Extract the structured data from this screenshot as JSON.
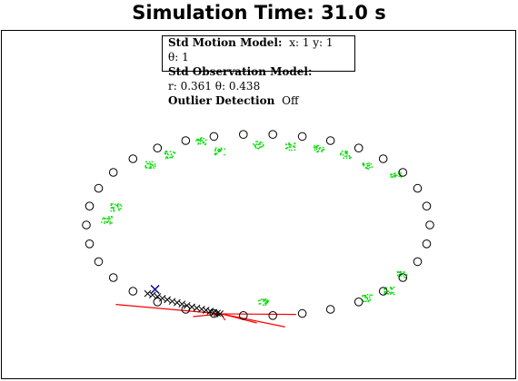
{
  "title": "Simulation Time: 31.0 s",
  "info_box": {
    "motion_label": "Std Motion Model:",
    "motion_values": "x: 1 y: 1",
    "motion_theta": "θ: 1",
    "obs_label": "Std Observation Model:",
    "obs_values": "r: 0.361 θ: 0.438",
    "outlier_label": "Outlier Detection",
    "outlier_value": "Off"
  },
  "colors": {
    "landmark": "#000000",
    "particles": "#00dd00",
    "trajectory": "#000000",
    "estimate": "#00008b",
    "observation": "#ff0000"
  },
  "chart_data": {
    "type": "scatter",
    "title": "Simulation Time: 31.0 s",
    "axes": "hidden",
    "xlim": [
      -8,
      8
    ],
    "ylim": [
      -6.4,
      6.4
    ],
    "series": [
      {
        "kind": "landmarks",
        "marker": "circle",
        "points": [
          [
            7.0,
            0.0
          ],
          [
            6.87,
            1.04
          ],
          [
            6.5,
            2.02
          ],
          [
            5.9,
            2.9
          ],
          [
            5.1,
            3.65
          ],
          [
            4.1,
            4.24
          ],
          [
            2.95,
            4.65
          ],
          [
            1.8,
            4.88
          ],
          [
            0.6,
            4.99
          ],
          [
            -0.6,
            4.99
          ],
          [
            -1.8,
            4.88
          ],
          [
            -2.95,
            4.65
          ],
          [
            -4.1,
            4.24
          ],
          [
            -5.1,
            3.65
          ],
          [
            -5.9,
            2.9
          ],
          [
            -6.5,
            2.02
          ],
          [
            -6.87,
            1.04
          ],
          [
            -7.0,
            0.0
          ],
          [
            -6.87,
            -1.04
          ],
          [
            -6.5,
            -2.02
          ],
          [
            -5.9,
            -2.9
          ],
          [
            -5.1,
            -3.65
          ],
          [
            -4.1,
            -4.24
          ],
          [
            -2.95,
            -4.65
          ],
          [
            -1.8,
            -4.88
          ],
          [
            -0.6,
            -4.99
          ],
          [
            0.6,
            -4.99
          ],
          [
            1.8,
            -4.88
          ],
          [
            2.95,
            -4.65
          ],
          [
            4.1,
            -4.24
          ],
          [
            5.1,
            -3.65
          ],
          [
            5.9,
            -2.9
          ],
          [
            6.5,
            -2.02
          ],
          [
            6.87,
            -1.04
          ]
        ]
      },
      {
        "kind": "particle_clusters",
        "marker": "dot",
        "centers": [
          [
            -1.6,
            4.1
          ],
          [
            -2.35,
            4.65
          ],
          [
            -3.6,
            3.9
          ],
          [
            -4.4,
            3.35
          ],
          [
            -0.02,
            4.45
          ],
          [
            1.3,
            4.35
          ],
          [
            2.45,
            4.25
          ],
          [
            3.55,
            3.9
          ],
          [
            4.45,
            3.3
          ],
          [
            5.6,
            2.8
          ],
          [
            -5.8,
            1.0
          ],
          [
            -6.2,
            0.3
          ],
          [
            5.85,
            -2.7
          ],
          [
            5.3,
            -3.6
          ],
          [
            4.4,
            -4.0
          ],
          [
            0.2,
            -4.2
          ]
        ]
      },
      {
        "kind": "trajectory",
        "marker": "x",
        "points": [
          [
            -4.5,
            -3.78
          ],
          [
            -4.3,
            -3.86
          ],
          [
            -4.1,
            -3.95
          ],
          [
            -3.9,
            -4.04
          ],
          [
            -3.7,
            -4.12
          ],
          [
            -3.5,
            -4.21
          ],
          [
            -3.3,
            -4.28
          ],
          [
            -3.1,
            -4.36
          ],
          [
            -2.9,
            -4.44
          ],
          [
            -2.7,
            -4.52
          ],
          [
            -2.5,
            -4.58
          ],
          [
            -2.3,
            -4.64
          ],
          [
            -2.12,
            -4.7
          ],
          [
            -1.95,
            -4.75
          ],
          [
            -1.8,
            -4.82
          ],
          [
            -1.66,
            -4.86
          ],
          [
            -1.55,
            -4.9
          ]
        ]
      },
      {
        "kind": "estimate",
        "marker": "x",
        "points": [
          [
            -4.2,
            -3.55
          ]
        ]
      },
      {
        "kind": "observations",
        "origin": [
          -1.5,
          -4.9
        ],
        "endpoints": [
          [
            -5.8,
            -4.38
          ],
          [
            -2.65,
            -5.05
          ],
          [
            -1.35,
            -5.25
          ],
          [
            -0.05,
            -5.4
          ],
          [
            1.1,
            -5.62
          ],
          [
            1.55,
            -4.93
          ]
        ]
      }
    ]
  }
}
